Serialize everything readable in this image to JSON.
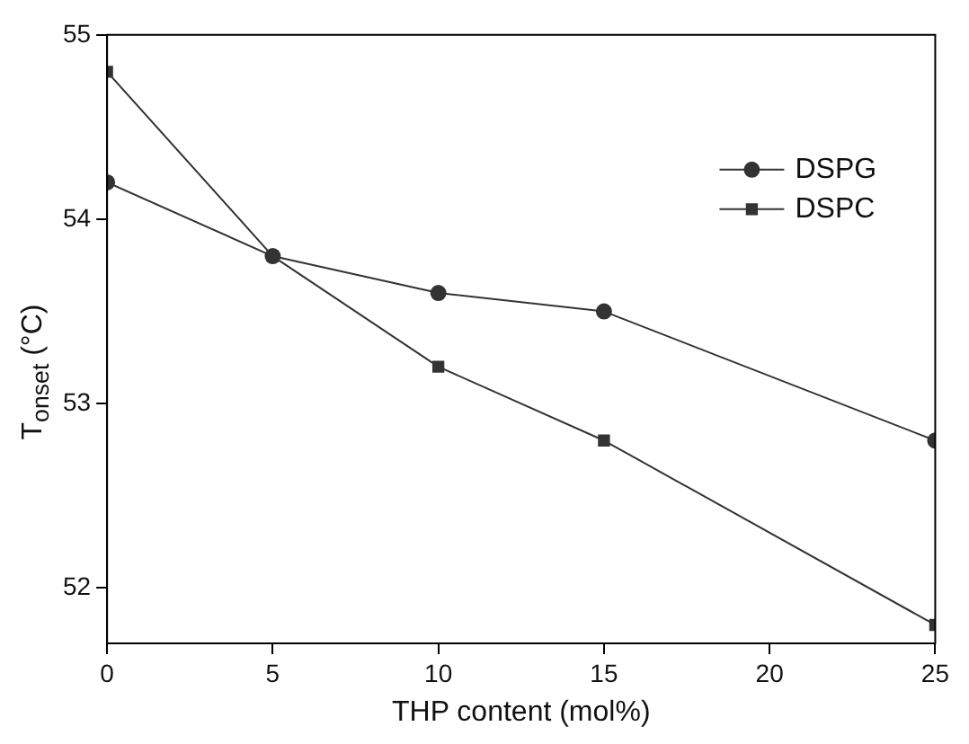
{
  "chart_data": {
    "type": "line",
    "xlabel": "THP content (mol%)",
    "ylabel": "T$_{onset}$ (°C)",
    "x": [
      0,
      5,
      10,
      15,
      25
    ],
    "series": [
      {
        "name": "DSPG",
        "color": "#333333",
        "marker": "circle",
        "values": [
          54.2,
          53.8,
          53.6,
          53.5,
          52.8
        ]
      },
      {
        "name": "DSPC",
        "color": "#333333",
        "marker": "square",
        "values": [
          54.8,
          53.8,
          53.2,
          52.8,
          51.8
        ]
      }
    ],
    "xlim": [
      0,
      25
    ],
    "xticks": [
      0,
      5,
      10,
      15,
      20,
      25
    ],
    "ylim": [
      51.7,
      55
    ],
    "yticks": [
      52,
      53,
      54,
      55
    ],
    "grid": false,
    "legend": "top right",
    "line_style": "solid"
  }
}
